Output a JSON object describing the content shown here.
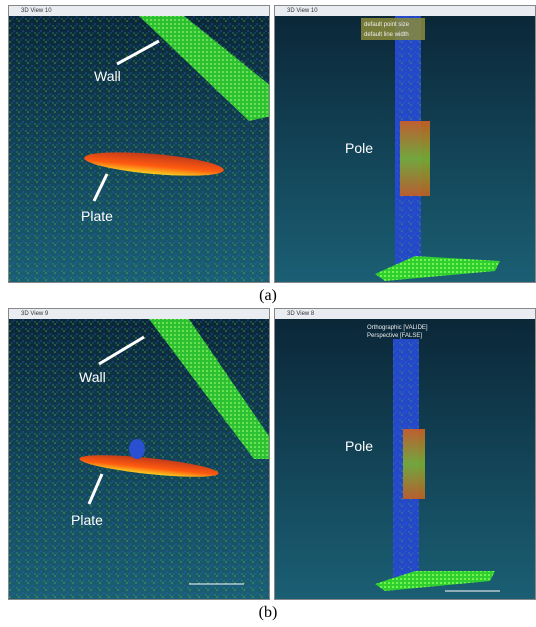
{
  "figure": {
    "panels": [
      {
        "title": "3D View 10",
        "labels": [
          "Wall",
          "Plate"
        ]
      },
      {
        "title": "3D View 10",
        "labels": [
          "Pole"
        ],
        "overlay": [
          "default point size",
          "default line width"
        ]
      },
      {
        "title": "3D View 9",
        "labels": [
          "Wall",
          "Plate"
        ]
      },
      {
        "title": "3D View 8",
        "labels": [
          "Pole"
        ],
        "overlay": [
          "Orthographic [VALIDE]",
          "Perspective [FALSE]"
        ]
      }
    ],
    "captions": [
      "(a)",
      "(b)"
    ]
  }
}
